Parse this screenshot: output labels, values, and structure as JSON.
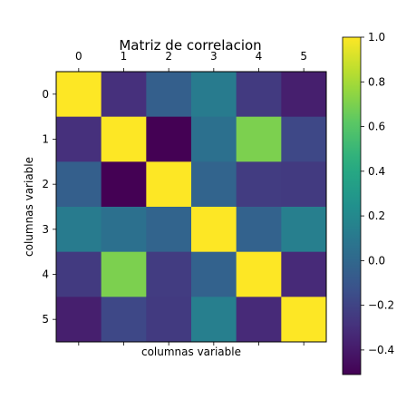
{
  "chart_data": {
    "type": "heatmap",
    "title": "Matriz de correlacion",
    "xlabel": "columnas variable",
    "ylabel": "columnas variable",
    "x_ticks": [
      "0",
      "1",
      "2",
      "3",
      "4",
      "5"
    ],
    "y_ticks": [
      "0",
      "1",
      "2",
      "3",
      "4",
      "5"
    ],
    "bottom_tick_labels_shown": false,
    "matrix": [
      [
        1.0,
        -0.3,
        -0.05,
        0.12,
        -0.25,
        -0.38
      ],
      [
        -0.3,
        1.0,
        -0.51,
        0.05,
        0.7,
        -0.18
      ],
      [
        -0.05,
        -0.51,
        1.0,
        -0.02,
        -0.24,
        -0.25
      ],
      [
        0.12,
        0.05,
        -0.02,
        1.0,
        -0.03,
        0.14
      ],
      [
        -0.25,
        0.7,
        -0.24,
        -0.03,
        1.0,
        -0.33
      ],
      [
        -0.38,
        -0.18,
        -0.25,
        0.14,
        -0.33,
        1.0
      ]
    ],
    "colormap": "viridis",
    "colorbar": {
      "vmin": -0.51,
      "vmax": 1.0,
      "ticks": [
        -0.4,
        -0.2,
        0.0,
        0.2,
        0.4,
        0.6,
        0.8,
        1.0
      ],
      "tick_labels": [
        "−0.4",
        "−0.2",
        "0.0",
        "0.2",
        "0.4",
        "0.6",
        "0.8",
        "1.0"
      ]
    },
    "grid": false
  }
}
